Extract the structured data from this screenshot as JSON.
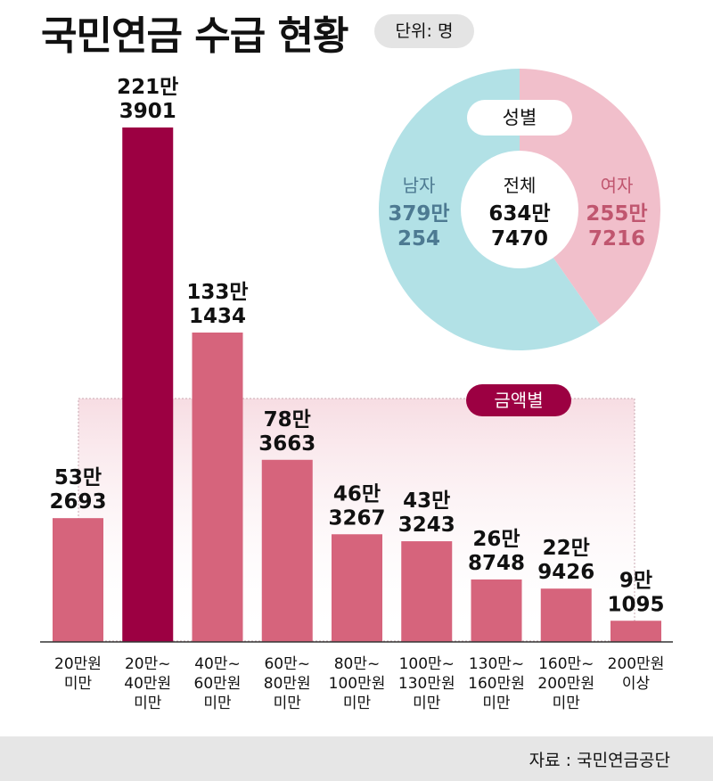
{
  "title": "국민연금 수급 현황",
  "unit": "단위: 명",
  "source": "자료 : 국민연금공단",
  "colors": {
    "bar": "#d6647c",
    "bar_highlight": "#9c0042",
    "male": "#b2e1e6",
    "female": "#f1bfcb",
    "male_text": "#4d7a92",
    "female_text": "#c0566f"
  },
  "chart_data": [
    {
      "type": "pie",
      "title": "성별",
      "center_label": "전체",
      "center_value": [
        "634만",
        "7470"
      ],
      "total": 6347470,
      "slices": [
        {
          "name": "여자",
          "value": 2557216,
          "label": [
            "255만",
            "7216"
          ]
        },
        {
          "name": "남자",
          "value": 3790254,
          "label": [
            "379만",
            "254"
          ]
        }
      ]
    },
    {
      "type": "bar",
      "title": "금액별",
      "categories": [
        "20만원\n미만",
        "20만~\n40만원\n미만",
        "40만~\n60만원\n미만",
        "60만~\n80만원\n미만",
        "80만~\n100만원\n미만",
        "100만~\n130만원\n미만",
        "130만~\n160만원\n미만",
        "160만~\n200만원\n미만",
        "200만원\n이상"
      ],
      "values": [
        532693,
        2213901,
        1331434,
        783663,
        463267,
        433243,
        268748,
        229426,
        91095
      ],
      "value_labels": [
        [
          "53만",
          "2693"
        ],
        [
          "221만",
          "3901"
        ],
        [
          "133만",
          "1434"
        ],
        [
          "78만",
          "3663"
        ],
        [
          "46만",
          "3267"
        ],
        [
          "43만",
          "3243"
        ],
        [
          "26만",
          "8748"
        ],
        [
          "22만",
          "9426"
        ],
        [
          "9만",
          "1095"
        ]
      ],
      "highlight_index": 1
    }
  ]
}
